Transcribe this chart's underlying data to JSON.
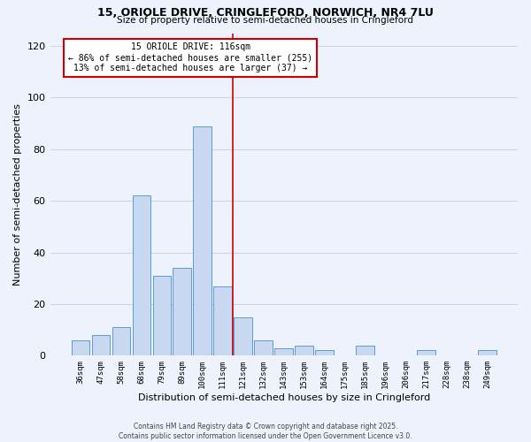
{
  "title_line1": "15, ORIOLE DRIVE, CRINGLEFORD, NORWICH, NR4 7LU",
  "title_line2": "Size of property relative to semi-detached houses in Cringleford",
  "xlabel": "Distribution of semi-detached houses by size in Cringleford",
  "ylabel": "Number of semi-detached properties",
  "bar_labels": [
    "36sqm",
    "47sqm",
    "58sqm",
    "68sqm",
    "79sqm",
    "89sqm",
    "100sqm",
    "111sqm",
    "121sqm",
    "132sqm",
    "143sqm",
    "153sqm",
    "164sqm",
    "175sqm",
    "185sqm",
    "196sqm",
    "206sqm",
    "217sqm",
    "228sqm",
    "238sqm",
    "249sqm"
  ],
  "bar_values": [
    6,
    8,
    11,
    62,
    31,
    34,
    89,
    27,
    15,
    6,
    3,
    4,
    2,
    0,
    4,
    0,
    0,
    2,
    0,
    0,
    2
  ],
  "bar_color": "#c8d8f0",
  "bar_edge_color": "#5b9bd5",
  "grid_color": "#c8d4e8",
  "background_color": "#eef2fc",
  "vline_color": "#cc0000",
  "annotation_title": "15 ORIOLE DRIVE: 116sqm",
  "annotation_line1": "← 86% of semi-detached houses are smaller (255)",
  "annotation_line2": "13% of semi-detached houses are larger (37) →",
  "annotation_box_color": "#ffffff",
  "annotation_box_edge": "#cc0000",
  "ylim": [
    0,
    125
  ],
  "yticks": [
    0,
    20,
    40,
    60,
    80,
    100,
    120
  ],
  "footer_line1": "Contains HM Land Registry data © Crown copyright and database right 2025.",
  "footer_line2": "Contains public sector information licensed under the Open Government Licence v3.0."
}
